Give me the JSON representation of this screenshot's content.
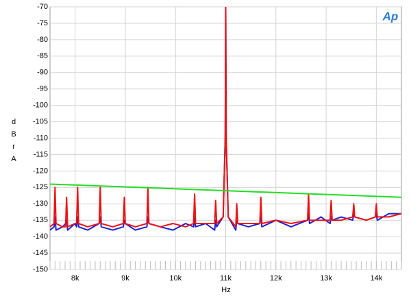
{
  "chart_data": {
    "type": "line",
    "logo": "Ap",
    "x_label": "Hz",
    "y_label": "dBrA",
    "xlim": [
      7500,
      14500
    ],
    "xticks": [
      {
        "value": 8000,
        "label": "8k"
      },
      {
        "value": 9000,
        "label": "9k"
      },
      {
        "value": 10000,
        "label": "10k"
      },
      {
        "value": 11000,
        "label": "11k"
      },
      {
        "value": 12000,
        "label": "12k"
      },
      {
        "value": 13000,
        "label": "13k"
      },
      {
        "value": 14000,
        "label": "14k"
      }
    ],
    "ylim": [
      -150,
      -70
    ],
    "yticks": [
      -70,
      -75,
      -80,
      -85,
      -90,
      -95,
      -100,
      -105,
      -110,
      -115,
      -120,
      -125,
      -130,
      -135,
      -140,
      -145,
      -150
    ],
    "grid": true,
    "series": [
      {
        "color": "#2020d0",
        "x": [
          7500,
          7580,
          7600,
          7620,
          7750,
          7810,
          7830,
          7850,
          8000,
          8030,
          8050,
          8070,
          8250,
          8480,
          8500,
          8520,
          8750,
          8960,
          8980,
          9000,
          9200,
          9430,
          9450,
          9470,
          9700,
          9950,
          10200,
          10360,
          10380,
          10400,
          10600,
          10780,
          10800,
          10820,
          10950,
          10990,
          11000,
          11010,
          11050,
          11200,
          11220,
          11240,
          11450,
          11680,
          11700,
          11720,
          12000,
          12300,
          12630,
          12650,
          12670,
          12900,
          13080,
          13100,
          13120,
          13300,
          13530,
          13550,
          13570,
          13800,
          13980,
          14000,
          14020,
          14250,
          14500
        ],
        "values": [
          -138,
          -137,
          -134,
          -138,
          -137,
          -136,
          -135,
          -138,
          -136,
          -137,
          -134,
          -137,
          -138,
          -136,
          -134,
          -137,
          -138,
          -137,
          -135,
          -136,
          -138,
          -137,
          -134,
          -136,
          -137,
          -138,
          -136,
          -137,
          -134,
          -137,
          -136,
          -138,
          -135,
          -137,
          -134,
          -110,
          -70,
          -110,
          -134,
          -138,
          -135,
          -136,
          -137,
          -136,
          -134,
          -137,
          -135,
          -137,
          -135,
          -133,
          -136,
          -134,
          -136,
          -134,
          -135,
          -134,
          -135,
          -133,
          -134,
          -135,
          -134,
          -133,
          -135,
          -133,
          -133
        ]
      },
      {
        "color": "#ee1111",
        "x": [
          7500,
          7580,
          7600,
          7620,
          7750,
          7810,
          7830,
          7850,
          8000,
          8030,
          8050,
          8070,
          8250,
          8480,
          8500,
          8520,
          8750,
          8960,
          8980,
          9000,
          9200,
          9430,
          9450,
          9470,
          9700,
          9950,
          10200,
          10360,
          10380,
          10400,
          10600,
          10780,
          10800,
          10820,
          10950,
          10990,
          11000,
          11010,
          11050,
          11200,
          11220,
          11240,
          11450,
          11680,
          11700,
          11720,
          12000,
          12300,
          12630,
          12650,
          12670,
          12900,
          13080,
          13100,
          13120,
          13300,
          13530,
          13550,
          13570,
          13800,
          13980,
          14000,
          14020,
          14250,
          14500
        ],
        "values": [
          -137,
          -136,
          -125,
          -136,
          -137,
          -137,
          -128,
          -137,
          -136,
          -136,
          -125,
          -136,
          -137,
          -136,
          -125,
          -136,
          -137,
          -136,
          -128,
          -136,
          -137,
          -136,
          -125,
          -136,
          -137,
          -136,
          -137,
          -136,
          -127,
          -136,
          -136,
          -136,
          -129,
          -136,
          -134,
          -110,
          -70,
          -110,
          -134,
          -137,
          -130,
          -136,
          -136,
          -136,
          -128,
          -136,
          -135,
          -136,
          -135,
          -127,
          -135,
          -135,
          -135,
          -129,
          -135,
          -135,
          -134,
          -130,
          -134,
          -135,
          -134,
          -130,
          -134,
          -134,
          -133
        ]
      },
      {
        "color": "#22dd22",
        "x": [
          7500,
          14500
        ],
        "values": [
          -124,
          -128
        ]
      }
    ]
  }
}
